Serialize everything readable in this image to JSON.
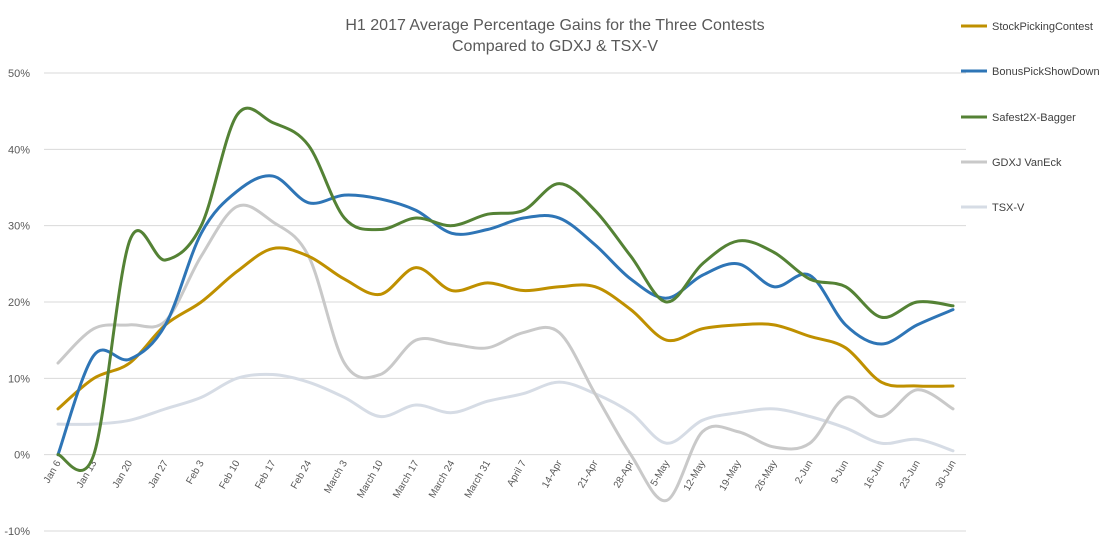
{
  "chart_data": {
    "type": "line",
    "title": [
      "H1 2017 Average Percentage Gains for the Three Contests",
      "Compared to GDXJ & TSX-V"
    ],
    "xlabel": "",
    "ylabel": "",
    "ylim": [
      -10,
      50
    ],
    "yticks": [
      -10,
      0,
      10,
      20,
      30,
      40,
      50
    ],
    "ytick_labels": [
      "-10%",
      "0%",
      "10%",
      "20%",
      "30%",
      "40%",
      "50%"
    ],
    "grid": true,
    "legend_position": "right",
    "categories": [
      "Jan 6",
      "Jan 13",
      "Jan 20",
      "Jan 27",
      "Feb 3",
      "Feb 10",
      "Feb 17",
      "Feb 24",
      "March 3",
      "March 10",
      "March 17",
      "March 24",
      "March 31",
      "April 7",
      "14-Apr",
      "21-Apr",
      "28-Apr",
      "5-May",
      "12-May",
      "19-May",
      "26-May",
      "2-Jun",
      "9-Jun",
      "16-Jun",
      "23-Jun",
      "30-Jun"
    ],
    "series": [
      {
        "name": "StockPickingContest",
        "color": "#BF9000",
        "values": [
          6,
          10,
          12,
          17,
          20,
          24,
          27,
          26,
          23,
          21,
          24.5,
          21.5,
          22.5,
          21.5,
          22,
          22,
          19,
          15,
          16.5,
          17,
          17,
          15.5,
          14,
          9.5,
          9,
          9
        ]
      },
      {
        "name": "BonusPickShowDown",
        "color": "#2E75B6",
        "values": [
          0,
          13,
          12.5,
          17,
          29,
          34.5,
          36.5,
          33,
          34,
          33.5,
          32,
          29,
          29.5,
          31,
          31,
          27.5,
          23,
          20.5,
          23.5,
          25,
          22,
          23.5,
          17,
          14.5,
          17,
          19
        ]
      },
      {
        "name": "Safest2X-Bagger",
        "color": "#548235",
        "values": [
          0,
          0,
          28,
          25.5,
          30,
          44.5,
          43.5,
          40.5,
          31,
          29.5,
          31,
          30,
          31.5,
          32,
          35.5,
          32,
          26,
          20,
          25,
          28,
          26.5,
          23,
          22,
          18,
          20,
          19.5
        ]
      },
      {
        "name": "GDXJ VanEck",
        "color": "#C9C9C9",
        "values": [
          12,
          16.5,
          17,
          17.5,
          26,
          32.5,
          30.5,
          26,
          12,
          10.5,
          15,
          14.5,
          14,
          16,
          16,
          8,
          0,
          -6,
          3,
          3,
          1,
          1.5,
          7.5,
          5,
          8.5,
          6
        ]
      },
      {
        "name": "TSX-V",
        "color": "#D6DCE5",
        "values": [
          4,
          4,
          4.5,
          6,
          7.5,
          10,
          10.5,
          9.5,
          7.5,
          5,
          6.5,
          5.5,
          7,
          8,
          9.5,
          8,
          5.5,
          1.5,
          4.5,
          5.5,
          6,
          5,
          3.5,
          1.5,
          2,
          0.5
        ]
      }
    ]
  }
}
